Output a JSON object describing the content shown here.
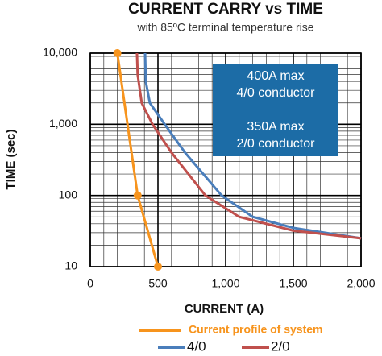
{
  "chart_data": {
    "type": "line",
    "title": "CURRENT CARRY vs TIME",
    "subtitle": "with 85ºC terminal temperature rise",
    "xlabel": "CURRENT (A)",
    "ylabel": "TIME (sec)",
    "xlim": [
      0,
      2000
    ],
    "xticks": [
      0,
      500,
      {
        "value": 1000,
        "label": "1,000"
      },
      {
        "value": 1500,
        "label": "1,500"
      },
      {
        "value": 2000,
        "label": "2,000"
      }
    ],
    "ylim": [
      10,
      10000
    ],
    "yticks": [
      10,
      100,
      {
        "value": 1000,
        "label": "1,000"
      },
      {
        "value": 10000,
        "label": "10,000"
      }
    ],
    "log_y": true,
    "grid": true,
    "annotations": [
      "400A max",
      "4/0 conductor",
      "350A max",
      "2/0 conductor"
    ],
    "annotation_color": "#1c6ca6",
    "series": [
      {
        "name": "Current profile of system",
        "color": "#f7941d",
        "marker": true,
        "x": [
          200,
          350,
          500
        ],
        "values": [
          10000,
          100,
          10
        ]
      },
      {
        "name": "4/0",
        "color": "#4a7ebb",
        "x": [
          405,
          410,
          440,
          550,
          700,
          970,
          1200,
          1500,
          2000
        ],
        "values": [
          10000,
          4000,
          2000,
          1000,
          400,
          100,
          50,
          35,
          25
        ]
      },
      {
        "name": "2/0",
        "color": "#c0504d",
        "x": [
          345,
          350,
          380,
          460,
          600,
          850,
          1100,
          1500,
          2000
        ],
        "values": [
          10000,
          5000,
          2000,
          1000,
          400,
          100,
          50,
          32,
          25
        ]
      }
    ]
  }
}
